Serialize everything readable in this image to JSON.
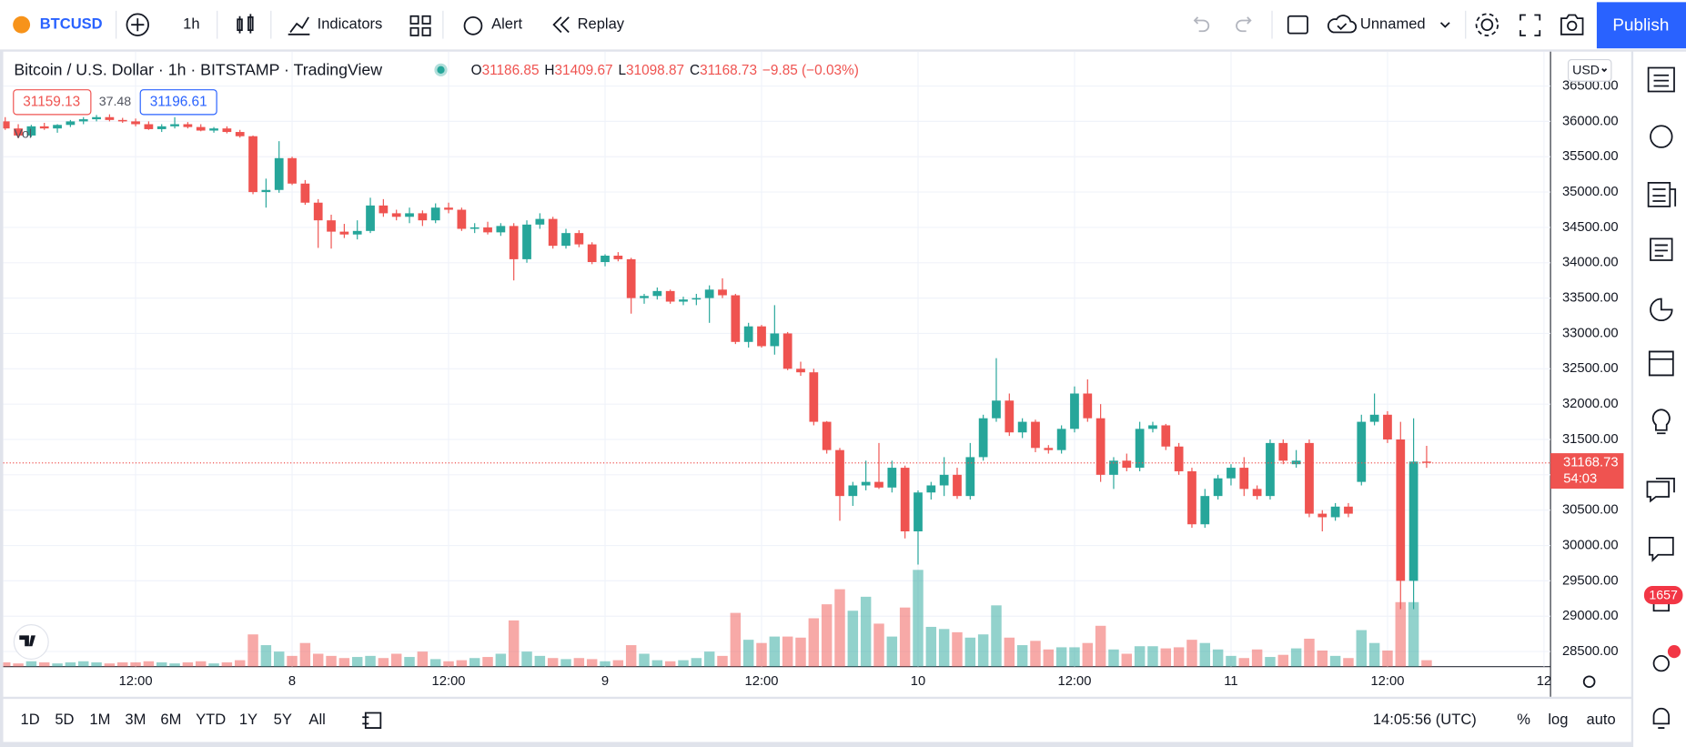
{
  "toolbar": {
    "symbol": "BTCUSD",
    "interval": "1h",
    "indicators": "Indicators",
    "alert": "Alert",
    "replay": "Replay",
    "layout_name": "Unnamed",
    "publish": "Publish"
  },
  "header": {
    "title": "Bitcoin / U.S. Dollar · 1h · BITSTAMP · TradingView",
    "bid": "31159.13",
    "spread": "37.48",
    "ask": "31196.61",
    "change": "−9.85 (−0.03%)",
    "currency": "USD",
    "countdown": "54:03",
    "badge": "1657"
  },
  "bottom_bar": {
    "ranges": [
      "1D",
      "5D",
      "1M",
      "3M",
      "6M",
      "YTD",
      "1Y",
      "5Y",
      "All"
    ],
    "clock": "14:05:56 (UTC)",
    "percent": "%",
    "log": "log",
    "auto": "auto"
  },
  "chart_data": {
    "type": "candlestick",
    "up_color": "#26a69a",
    "down_color": "#ef5350",
    "volume_label": "Vol",
    "legend_labels": [
      "O",
      "H",
      "L",
      "C"
    ],
    "ylim": [
      28286,
      36987
    ],
    "yticks": [
      {
        "value": 28500,
        "label": "28500.00"
      },
      {
        "value": 29000,
        "label": "29000.00"
      },
      {
        "value": 29500,
        "label": "29500.00"
      },
      {
        "value": 30000,
        "label": "30000.00"
      },
      {
        "value": 30500,
        "label": "30500.00"
      },
      {
        "value": 31000,
        "label": "31000.00"
      },
      {
        "value": 31500,
        "label": "31500.00"
      },
      {
        "value": 32000,
        "label": "32000.00"
      },
      {
        "value": 32500,
        "label": "32500.00"
      },
      {
        "value": 33000,
        "label": "33000.00"
      },
      {
        "value": 33500,
        "label": "33500.00"
      },
      {
        "value": 34000,
        "label": "34000.00"
      },
      {
        "value": 34500,
        "label": "34500.00"
      },
      {
        "value": 35000,
        "label": "35000.00"
      },
      {
        "value": 35500,
        "label": "35500.00"
      },
      {
        "value": 36000,
        "label": "36000.00"
      },
      {
        "value": 36500,
        "label": "36500.00"
      }
    ],
    "xlim": [
      -0.4,
      118.5
    ],
    "xticks": [
      {
        "value": 10,
        "label": "12:00"
      },
      {
        "value": 22,
        "label": "8"
      },
      {
        "value": 34,
        "label": "12:00"
      },
      {
        "value": 46,
        "label": "9"
      },
      {
        "value": 58,
        "label": "12:00"
      },
      {
        "value": 70,
        "label": "10"
      },
      {
        "value": 82,
        "label": "12:00"
      },
      {
        "value": 94,
        "label": "11"
      },
      {
        "value": 106,
        "label": "12:00"
      },
      {
        "value": 118,
        "label": "12"
      }
    ],
    "grid": true,
    "candles": [
      [
        36000,
        36060,
        35880,
        35900
      ],
      [
        35900,
        35960,
        35760,
        35800
      ],
      [
        35800,
        35950,
        35780,
        35930
      ],
      [
        35930,
        35980,
        35880,
        35900
      ],
      [
        35900,
        35960,
        35840,
        35950
      ],
      [
        35950,
        36020,
        35920,
        36000
      ],
      [
        36000,
        36060,
        35960,
        36030
      ],
      [
        36030,
        36090,
        36000,
        36060
      ],
      [
        36060,
        36100,
        36000,
        36020
      ],
      [
        36020,
        36050,
        35980,
        36000
      ],
      [
        36000,
        36040,
        35930,
        35960
      ],
      [
        35960,
        36000,
        35880,
        35890
      ],
      [
        35890,
        35960,
        35850,
        35930
      ],
      [
        35930,
        36060,
        35900,
        35960
      ],
      [
        35960,
        35990,
        35900,
        35920
      ],
      [
        35920,
        35960,
        35860,
        35870
      ],
      [
        35870,
        35920,
        35840,
        35900
      ],
      [
        35900,
        35930,
        35830,
        35850
      ],
      [
        35850,
        35880,
        35770,
        35790
      ],
      [
        35790,
        35800,
        34970,
        35000
      ],
      [
        35000,
        35190,
        34780,
        35030
      ],
      [
        35030,
        35720,
        34990,
        35480
      ],
      [
        35480,
        35500,
        35100,
        35120
      ],
      [
        35120,
        35170,
        34820,
        34850
      ],
      [
        34850,
        34900,
        34210,
        34600
      ],
      [
        34600,
        34680,
        34200,
        34440
      ],
      [
        34440,
        34550,
        34350,
        34400
      ],
      [
        34400,
        34600,
        34330,
        34450
      ],
      [
        34450,
        34920,
        34420,
        34810
      ],
      [
        34810,
        34900,
        34650,
        34700
      ],
      [
        34700,
        34750,
        34600,
        34650
      ],
      [
        34650,
        34780,
        34560,
        34700
      ],
      [
        34700,
        34740,
        34520,
        34600
      ],
      [
        34600,
        34840,
        34560,
        34780
      ],
      [
        34780,
        34850,
        34700,
        34750
      ],
      [
        34750,
        34780,
        34450,
        34480
      ],
      [
        34480,
        34560,
        34420,
        34500
      ],
      [
        34500,
        34580,
        34400,
        34430
      ],
      [
        34430,
        34560,
        34380,
        34520
      ],
      [
        34520,
        34560,
        33750,
        34050
      ],
      [
        34050,
        34600,
        34000,
        34540
      ],
      [
        34540,
        34700,
        34480,
        34620
      ],
      [
        34620,
        34650,
        34200,
        34240
      ],
      [
        34240,
        34480,
        34200,
        34420
      ],
      [
        34420,
        34460,
        34220,
        34260
      ],
      [
        34260,
        34290,
        33980,
        34010
      ],
      [
        34010,
        34120,
        33950,
        34100
      ],
      [
        34100,
        34150,
        34020,
        34050
      ],
      [
        34050,
        34070,
        33280,
        33500
      ],
      [
        33500,
        33560,
        33420,
        33530
      ],
      [
        33530,
        33650,
        33480,
        33600
      ],
      [
        33600,
        33620,
        33420,
        33450
      ],
      [
        33450,
        33520,
        33400,
        33480
      ],
      [
        33480,
        33560,
        33400,
        33500
      ],
      [
        33500,
        33680,
        33150,
        33620
      ],
      [
        33620,
        33780,
        33500,
        33540
      ],
      [
        33540,
        33560,
        32850,
        32880
      ],
      [
        32880,
        33150,
        32800,
        33100
      ],
      [
        33100,
        33120,
        32800,
        32820
      ],
      [
        32820,
        33400,
        32700,
        33000
      ],
      [
        33000,
        33020,
        32480,
        32500
      ],
      [
        32500,
        32600,
        32400,
        32450
      ],
      [
        32450,
        32500,
        31700,
        31750
      ],
      [
        31750,
        31760,
        31300,
        31350
      ],
      [
        31350,
        31380,
        30350,
        30700
      ],
      [
        30700,
        30900,
        30560,
        30850
      ],
      [
        30850,
        31200,
        30780,
        30900
      ],
      [
        30900,
        31450,
        30800,
        30820
      ],
      [
        30820,
        31200,
        30750,
        31100
      ],
      [
        31100,
        31130,
        30100,
        30200
      ],
      [
        30200,
        30780,
        29730,
        30750
      ],
      [
        30750,
        30900,
        30650,
        30850
      ],
      [
        30850,
        31250,
        30700,
        31000
      ],
      [
        31000,
        31100,
        30660,
        30700
      ],
      [
        30700,
        31450,
        30650,
        31250
      ],
      [
        31250,
        31850,
        31200,
        31800
      ],
      [
        31800,
        32650,
        31750,
        32050
      ],
      [
        32050,
        32150,
        31550,
        31600
      ],
      [
        31600,
        31800,
        31520,
        31750
      ],
      [
        31750,
        31780,
        31320,
        31380
      ],
      [
        31380,
        31420,
        31300,
        31350
      ],
      [
        31350,
        31700,
        31300,
        31650
      ],
      [
        31650,
        32250,
        31600,
        32150
      ],
      [
        32150,
        32350,
        31750,
        31800
      ],
      [
        31800,
        32000,
        30900,
        31000
      ],
      [
        31000,
        31250,
        30800,
        31200
      ],
      [
        31200,
        31300,
        31050,
        31100
      ],
      [
        31100,
        31750,
        31050,
        31650
      ],
      [
        31650,
        31750,
        31600,
        31700
      ],
      [
        31700,
        31720,
        31350,
        31400
      ],
      [
        31400,
        31450,
        31000,
        31050
      ],
      [
        31050,
        31100,
        30250,
        30300
      ],
      [
        30300,
        30800,
        30250,
        30700
      ],
      [
        30700,
        31000,
        30650,
        30950
      ],
      [
        30950,
        31150,
        30850,
        31100
      ],
      [
        31100,
        31250,
        30700,
        30800
      ],
      [
        30800,
        30850,
        30650,
        30700
      ],
      [
        30700,
        31500,
        30650,
        31450
      ],
      [
        31450,
        31500,
        31150,
        31200
      ],
      [
        31150,
        31350,
        31100,
        31200
      ],
      [
        31450,
        31500,
        30400,
        30450
      ],
      [
        30450,
        30500,
        30200,
        30400
      ],
      [
        30400,
        30600,
        30350,
        30550
      ],
      [
        30550,
        30600,
        30400,
        30450
      ],
      [
        30900,
        31850,
        30850,
        31750
      ],
      [
        31750,
        32150,
        31700,
        31850
      ],
      [
        31850,
        31900,
        31450,
        31500
      ],
      [
        31500,
        31750,
        29100,
        29500
      ],
      [
        29500,
        31800,
        29100,
        31186.85
      ],
      [
        31186.85,
        31409.67,
        31098.87,
        31168.73
      ]
    ],
    "volume": [
      4,
      3,
      5,
      4,
      3,
      4,
      5,
      4,
      3,
      4,
      4,
      5,
      4,
      3,
      4,
      5,
      3,
      4,
      6,
      30,
      20,
      14,
      10,
      22,
      12,
      10,
      8,
      9,
      10,
      8,
      12,
      9,
      14,
      7,
      5,
      6,
      8,
      9,
      12,
      43,
      14,
      10,
      8,
      7,
      8,
      7,
      5,
      6,
      20,
      12,
      6,
      5,
      6,
      8,
      14,
      10,
      50,
      25,
      22,
      28,
      28,
      27,
      45,
      58,
      72,
      52,
      65,
      40,
      28,
      55,
      90,
      37,
      35,
      32,
      27,
      30,
      57,
      27,
      20,
      24,
      16,
      18,
      18,
      22,
      38,
      16,
      12,
      19,
      19,
      17,
      18,
      25,
      22,
      16,
      10,
      8,
      16,
      9,
      11,
      17,
      26,
      15,
      10,
      8,
      34,
      22,
      15,
      60,
      60,
      6
    ]
  }
}
